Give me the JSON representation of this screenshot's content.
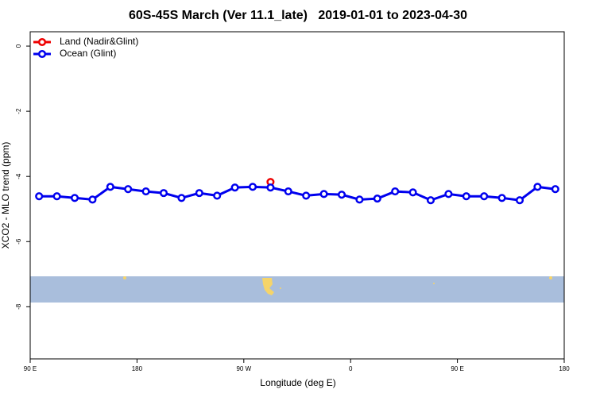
{
  "chart_data": {
    "type": "line",
    "title": "60S-45S March (Ver 11.1_late)   2019-01-01 to 2023-04-30",
    "xlabel": "Longitude (deg E)",
    "ylabel": "XCO2 - MLO trend (ppm)",
    "x": [
      97.5,
      112.5,
      127.5,
      142.5,
      157.5,
      172.5,
      187.5,
      202.5,
      217.5,
      232.5,
      247.5,
      262.5,
      277.5,
      292.5,
      307.5,
      322.5,
      337.5,
      352.5,
      367.5,
      382.5,
      397.5,
      412.5,
      427.5,
      442.5,
      457.5,
      472.5,
      487.5,
      502.5,
      517.5,
      532.5
    ],
    "series": [
      {
        "name": "Land (Nadir&Glint)",
        "color": "#ee0000",
        "values": [
          null,
          null,
          null,
          null,
          null,
          null,
          null,
          null,
          null,
          null,
          null,
          null,
          null,
          -4.17,
          null,
          null,
          null,
          null,
          null,
          null,
          null,
          null,
          null,
          null,
          null,
          null,
          null,
          null,
          null,
          null
        ]
      },
      {
        "name": "Ocean (Glint)",
        "color": "#0000ee",
        "values": [
          -4.61,
          -4.61,
          -4.66,
          -4.71,
          -4.32,
          -4.39,
          -4.46,
          -4.51,
          -4.66,
          -4.51,
          -4.59,
          -4.34,
          -4.32,
          -4.34,
          -4.46,
          -4.59,
          -4.54,
          -4.56,
          -4.71,
          -4.68,
          -4.46,
          -4.49,
          -4.73,
          -4.54,
          -4.61,
          -4.61,
          -4.66,
          -4.73,
          -4.32,
          -4.39
        ]
      }
    ],
    "xlim": [
      90,
      540
    ],
    "xticks": [
      {
        "value": 90,
        "label": "90 E"
      },
      {
        "value": 180,
        "label": "180"
      },
      {
        "value": 270,
        "label": "90 W"
      },
      {
        "value": 360,
        "label": "0"
      },
      {
        "value": 450,
        "label": "90 E"
      },
      {
        "value": 540,
        "label": "180"
      }
    ],
    "ylim": [
      -9.6,
      0.44
    ],
    "yticks": [
      0,
      -2,
      -4,
      -6,
      -8
    ],
    "legend": "top-left"
  }
}
